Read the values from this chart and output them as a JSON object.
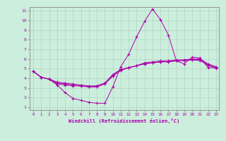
{
  "xlabel": "Windchill (Refroidissement éolien,°C)",
  "bg_color": "#cceedd",
  "line_color": "#aa00aa",
  "xlim": [
    -0.5,
    23.4
  ],
  "ylim": [
    0.7,
    11.4
  ],
  "xticks": [
    0,
    1,
    2,
    3,
    4,
    5,
    6,
    7,
    8,
    9,
    10,
    11,
    12,
    13,
    14,
    15,
    16,
    17,
    18,
    19,
    20,
    21,
    22,
    23
  ],
  "yticks": [
    1,
    2,
    3,
    4,
    5,
    6,
    7,
    8,
    9,
    10,
    11
  ],
  "series": [
    {
      "x": [
        0,
        1,
        2,
        3,
        4,
        5,
        6,
        7,
        8,
        9,
        10,
        11,
        12,
        13,
        14,
        15,
        16,
        17,
        18,
        19,
        20,
        21,
        22,
        23
      ],
      "y": [
        4.7,
        4.1,
        3.9,
        3.3,
        2.5,
        1.9,
        1.7,
        1.5,
        1.4,
        1.4,
        3.1,
        5.2,
        6.5,
        8.3,
        9.9,
        11.2,
        10.1,
        8.5,
        5.8,
        5.5,
        6.2,
        6.1,
        5.1,
        5.1
      ]
    },
    {
      "x": [
        0,
        1,
        2,
        3,
        4,
        5,
        6,
        7,
        8,
        9,
        10,
        11,
        12,
        13,
        14,
        15,
        16,
        17,
        18,
        19,
        20,
        21,
        22,
        23
      ],
      "y": [
        4.7,
        4.1,
        3.9,
        3.5,
        3.4,
        3.3,
        3.2,
        3.1,
        3.1,
        3.4,
        4.2,
        4.8,
        5.1,
        5.3,
        5.5,
        5.6,
        5.7,
        5.8,
        5.9,
        5.9,
        6.0,
        6.0,
        5.5,
        5.2
      ]
    },
    {
      "x": [
        0,
        1,
        2,
        3,
        4,
        5,
        6,
        7,
        8,
        9,
        10,
        11,
        12,
        13,
        14,
        15,
        16,
        17,
        18,
        19,
        20,
        21,
        22,
        23
      ],
      "y": [
        4.7,
        4.1,
        3.9,
        3.4,
        3.3,
        3.2,
        3.2,
        3.1,
        3.2,
        3.5,
        4.3,
        4.9,
        5.1,
        5.3,
        5.6,
        5.7,
        5.8,
        5.8,
        5.8,
        5.9,
        5.95,
        5.95,
        5.4,
        5.1
      ]
    },
    {
      "x": [
        0,
        1,
        2,
        3,
        4,
        5,
        6,
        7,
        8,
        9,
        10,
        11,
        12,
        13,
        14,
        15,
        16,
        17,
        18,
        19,
        20,
        21,
        22,
        23
      ],
      "y": [
        4.7,
        4.1,
        3.9,
        3.6,
        3.5,
        3.4,
        3.3,
        3.2,
        3.2,
        3.5,
        4.4,
        4.9,
        5.1,
        5.3,
        5.5,
        5.6,
        5.7,
        5.7,
        5.8,
        5.85,
        5.9,
        5.85,
        5.35,
        5.05
      ]
    }
  ]
}
